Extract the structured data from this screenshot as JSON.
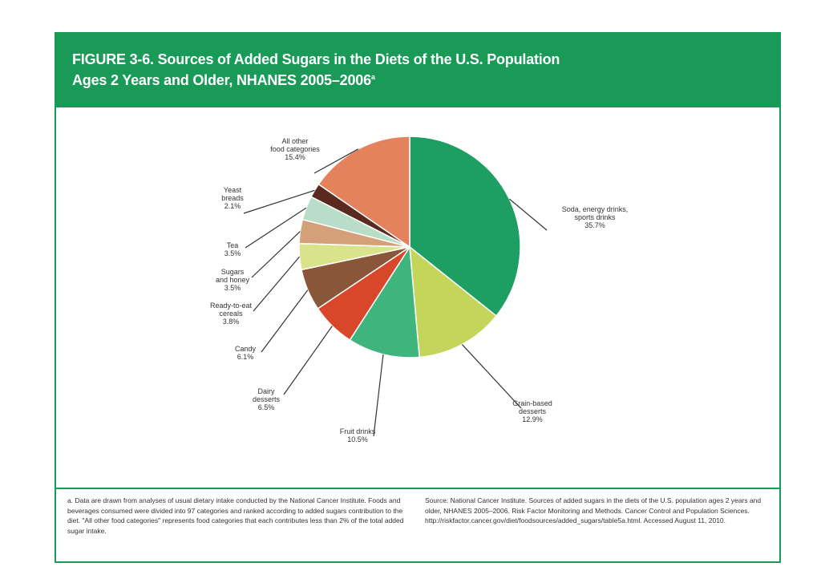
{
  "header": {
    "title_line1": "FIGURE 3-6. Sources of Added Sugars in the Diets of the U.S. Population",
    "title_line2": "Ages 2 Years and Older, NHANES 2005–2006",
    "title_sup": "a"
  },
  "footnote": "a. Data are drawn from analyses of usual dietary intake conducted by the National Cancer Institute. Foods and beverages consumed were divided into 97 categories and ranked according to added sugars contribution to the diet. \"All other food categories\" represents food categories that each contributes less than 2% of the total added sugar intake.",
  "source": "Source: National Cancer Institute. Sources of added sugars in the diets of the U.S. population ages 2 years and older, NHANES 2005–2006. Risk Factor Monitoring and Methods. Cancer Control and Population Sciences. http://riskfactor.cancer.gov/diet/foodsources/added_sugars/table5a.html. Accessed August 11, 2010.",
  "colors": {
    "brand_green": "#1a9a57"
  },
  "chart_data": {
    "type": "pie",
    "title": "",
    "slices": [
      {
        "name": "Soda, energy drinks, sports drinks",
        "label_lines": [
          "Soda, energy drinks,",
          "sports drinks",
          "35.7%"
        ],
        "value": 35.7,
        "color": "#1d9e63"
      },
      {
        "name": "Grain-based desserts",
        "label_lines": [
          "Grain-based",
          "desserts",
          "12.9%"
        ],
        "value": 12.9,
        "color": "#c3d659"
      },
      {
        "name": "Fruit drinks",
        "label_lines": [
          "Fruit drinks",
          "10.5%"
        ],
        "value": 10.5,
        "color": "#3fb47c"
      },
      {
        "name": "Dairy desserts",
        "label_lines": [
          "Dairy",
          "desserts",
          "6.5%"
        ],
        "value": 6.5,
        "color": "#d9472b"
      },
      {
        "name": "Candy",
        "label_lines": [
          "Candy",
          "6.1%"
        ],
        "value": 6.1,
        "color": "#8a5639"
      },
      {
        "name": "Ready-to-eat cereals",
        "label_lines": [
          "Ready-to-eat",
          "cereals",
          "3.8%"
        ],
        "value": 3.8,
        "color": "#d9e38a"
      },
      {
        "name": "Sugars and honey",
        "label_lines": [
          "Sugars",
          "and honey",
          "3.5%"
        ],
        "value": 3.5,
        "color": "#d4a079"
      },
      {
        "name": "Tea",
        "label_lines": [
          "Tea",
          "3.5%"
        ],
        "value": 3.5,
        "color": "#b8ddc8"
      },
      {
        "name": "Yeast breads",
        "label_lines": [
          "Yeast",
          "breads",
          "2.1%"
        ],
        "value": 2.1,
        "color": "#5a2a1e"
      },
      {
        "name": "All other food categories",
        "label_lines": [
          "All other",
          "food categories",
          "15.4%"
        ],
        "value": 15.4,
        "color": "#e5825e"
      }
    ]
  }
}
